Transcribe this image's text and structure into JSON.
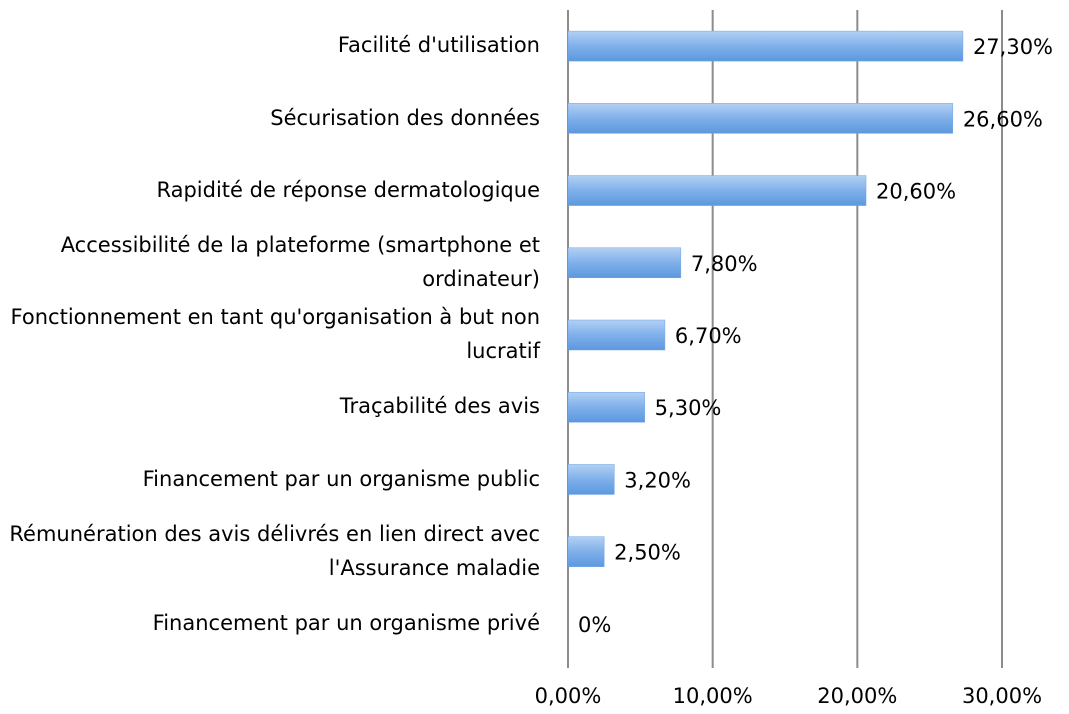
{
  "chart_data": {
    "type": "bar",
    "orientation": "horizontal",
    "categories": [
      "Facilité d'utilisation",
      "Sécurisation des données",
      "Rapidité de réponse dermatologique",
      "Accessibilité de la plateforme (smartphone et ordinateur)",
      "Fonctionnement en tant qu'organisation à but non lucratif",
      "Traçabilité des avis",
      "Financement par un organisme public",
      "Rémunération des avis délivrés en lien direct avec l'Assurance maladie",
      "Financement par un organisme privé"
    ],
    "values": [
      27.3,
      26.6,
      20.6,
      7.8,
      6.7,
      5.3,
      3.2,
      2.5,
      0
    ],
    "value_labels": [
      "27,30%",
      "26,60%",
      "20,60%",
      "7,80%",
      "6,70%",
      "5,30%",
      "3,20%",
      "2,50%",
      "0%"
    ],
    "color": "#6fa6e6",
    "xlim": [
      0,
      30
    ],
    "xticks": [
      {
        "value": 0,
        "label": "0,00%"
      },
      {
        "value": 10,
        "label": "10,00%"
      },
      {
        "value": 20,
        "label": "20,00%"
      },
      {
        "value": 30,
        "label": "30,00%"
      }
    ],
    "grid": true
  }
}
